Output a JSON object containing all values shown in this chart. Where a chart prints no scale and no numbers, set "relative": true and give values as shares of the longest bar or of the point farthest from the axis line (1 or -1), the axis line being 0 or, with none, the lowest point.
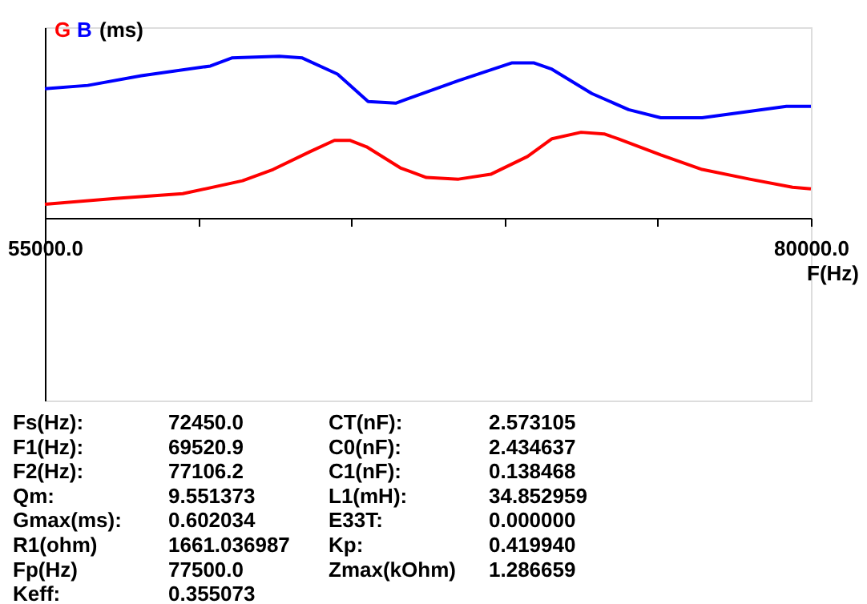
{
  "chart_data": {
    "type": "line",
    "relative": true,
    "xlabel": "F(Hz)",
    "ylabel": "(ms)",
    "xlim": [
      55000,
      80000
    ],
    "xticks": [
      {
        "value": 55000,
        "label": "55000.0"
      },
      {
        "value": 60000,
        "label": null
      },
      {
        "value": 65000,
        "label": null
      },
      {
        "value": 70000,
        "label": null
      },
      {
        "value": 75000,
        "label": null
      },
      {
        "value": 80000,
        "label": "80000.0"
      }
    ],
    "grid": false,
    "series": [
      {
        "name": "G",
        "color": "#ff0000",
        "x": [
          55000,
          57300,
          59500,
          61450,
          62450,
          63650,
          64450,
          64950,
          65500,
          66600,
          67450,
          68500,
          69550,
          70750,
          71550,
          72500,
          73250,
          73700,
          75100,
          76450,
          78000,
          79400,
          80000
        ],
        "values": [
          0.085,
          0.12,
          0.15,
          0.23,
          0.3,
          0.41,
          0.48,
          0.48,
          0.44,
          0.31,
          0.25,
          0.24,
          0.27,
          0.38,
          0.49,
          0.53,
          0.52,
          0.49,
          0.39,
          0.3,
          0.24,
          0.19,
          0.18
        ]
      },
      {
        "name": "B",
        "color": "#0000ff",
        "x": [
          55000,
          56400,
          58150,
          60400,
          61100,
          62650,
          63400,
          64550,
          65550,
          66450,
          68500,
          70250,
          70950,
          71550,
          72850,
          74050,
          75100,
          76450,
          78000,
          79200,
          80000
        ],
        "values": [
          0.8,
          0.82,
          0.88,
          0.94,
          0.99,
          1.0,
          0.99,
          0.89,
          0.72,
          0.71,
          0.85,
          0.96,
          0.96,
          0.92,
          0.77,
          0.67,
          0.62,
          0.62,
          0.66,
          0.69,
          0.69
        ]
      }
    ],
    "annotations": [
      "Fs(Hz):",
      "72450.0",
      "CT(nF):",
      "2.573105",
      "F1(Hz):",
      "69520.9",
      "C0(nF):",
      "2.434637",
      "F2(Hz):",
      "77106.2",
      "C1(nF):",
      "0.138468",
      "Qm:",
      "9.551373",
      "L1(mH):",
      "34.852959",
      "Gmax(ms):",
      "0.602034",
      "E33T:",
      "0.000000",
      "R1(ohm)",
      "1661.036987",
      "Kp:",
      "0.419940",
      "Fp(Hz)",
      "77500.0",
      "Zmax(kOhm)",
      "1.286659",
      "Keff:",
      "0.355073"
    ]
  }
}
